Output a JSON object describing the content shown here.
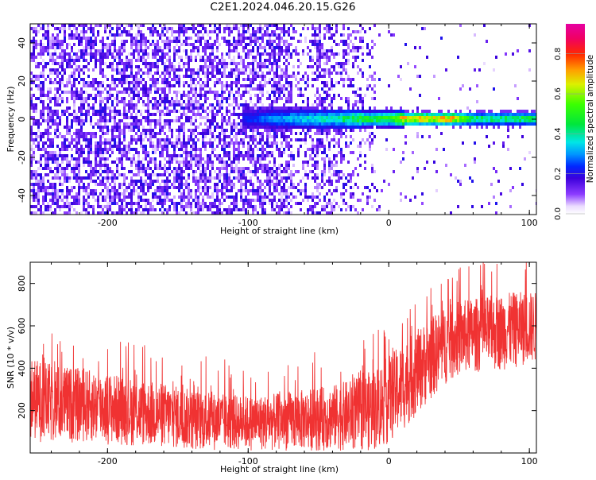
{
  "title": "C2E1.2024.046.20.15.G26",
  "chart_data": [
    {
      "type": "heatmap",
      "title": "C2E1.2024.046.20.15.G26",
      "xlabel": "Height of straight line (km)",
      "ylabel": "Frequency (Hz)",
      "xlim": [
        -255,
        105
      ],
      "ylim": [
        -50,
        50
      ],
      "xticks": [
        -200,
        -100,
        0,
        100
      ],
      "yticks": [
        -40,
        -20,
        0,
        20,
        40
      ],
      "colorbar": {
        "label": "Normalized spectral amplitude",
        "range": [
          0.0,
          0.95
        ],
        "ticks": [
          0.0,
          0.2,
          0.4,
          0.6,
          0.8
        ],
        "colormap": "rainbow (white-purple-blue-cyan-green-yellow-red-magenta)"
      },
      "description_of_field": {
        "noise_region_km": [
          -255,
          -10
        ],
        "noise_amplitude": [
          0.05,
          0.2
        ],
        "band_center_hz": 1,
        "band_start_km": -105,
        "band_width_hz_near_start": 10,
        "band_width_hz_at_end": 5,
        "band_amplitude": [
          {
            "x": -100,
            "value": 0.25
          },
          {
            "x": -80,
            "value": 0.35
          },
          {
            "x": -40,
            "value": 0.45
          },
          {
            "x": -20,
            "value": 0.55
          },
          {
            "x": 0,
            "value": 0.55
          },
          {
            "x": 12,
            "value": 0.85
          },
          {
            "x": 30,
            "value": 0.8
          },
          {
            "x": 45,
            "value": 0.85
          },
          {
            "x": 60,
            "value": 0.5
          },
          {
            "x": 100,
            "value": 0.55
          }
        ]
      },
      "grid": false
    },
    {
      "type": "line",
      "xlabel": "Height of straight line (km)",
      "ylabel": "SNR (10 * v/v)",
      "xlim": [
        -255,
        105
      ],
      "ylim": [
        0,
        900
      ],
      "xticks": [
        -200,
        -100,
        0,
        100
      ],
      "yticks": [
        200,
        400,
        600,
        800
      ],
      "series": [
        {
          "color": "#f03232",
          "envelope_x": [
            -255,
            -240,
            -220,
            -200,
            -180,
            -160,
            -140,
            -120,
            -100,
            -80,
            -60,
            -40,
            -20,
            -10,
            0,
            10,
            20,
            30,
            40,
            50,
            60,
            70,
            80,
            90,
            100,
            105
          ],
          "envelope_low": [
            60,
            40,
            50,
            40,
            30,
            20,
            10,
            10,
            10,
            10,
            10,
            10,
            10,
            10,
            40,
            100,
            180,
            250,
            320,
            360,
            380,
            380,
            390,
            400,
            420,
            420
          ],
          "envelope_high": [
            450,
            420,
            400,
            380,
            350,
            330,
            300,
            280,
            270,
            280,
            300,
            320,
            360,
            400,
            460,
            520,
            580,
            640,
            690,
            720,
            730,
            740,
            750,
            760,
            760,
            760
          ]
        }
      ],
      "grid": false
    }
  ],
  "colors": {
    "noise_series": "#f03232",
    "axes": "#000000",
    "background": "#ffffff"
  }
}
